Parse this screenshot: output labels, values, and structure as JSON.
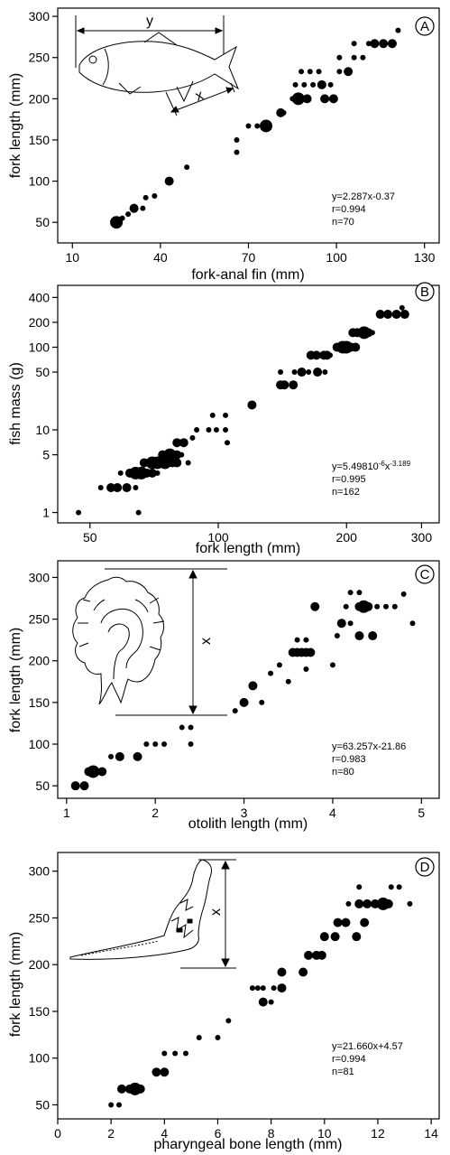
{
  "chart_data": [
    {
      "type": "scatter",
      "panel": "A",
      "xlabel": "fork-anal fin (mm)",
      "ylabel": "fork length (mm)",
      "xlim": [
        5,
        135
      ],
      "ylim": [
        25,
        310
      ],
      "xticks": [
        10,
        40,
        70,
        100,
        130
      ],
      "yticks": [
        50,
        100,
        150,
        200,
        250,
        300
      ],
      "equation_lines": [
        "y=2.287x-0.37",
        "r=0.994",
        "n=70"
      ],
      "inset_labels": [
        "y",
        "x"
      ],
      "point_sizes": {
        "1": 3,
        "2": 5,
        "3": 7
      },
      "points": [
        [
          25,
          50,
          3
        ],
        [
          27,
          55,
          1
        ],
        [
          29,
          60,
          1
        ],
        [
          31,
          67,
          2
        ],
        [
          34,
          67,
          1
        ],
        [
          35,
          80,
          1
        ],
        [
          38,
          82,
          1
        ],
        [
          43,
          100,
          2
        ],
        [
          49,
          117,
          1
        ],
        [
          66,
          135,
          1
        ],
        [
          66,
          150,
          1
        ],
        [
          70,
          167,
          1
        ],
        [
          73,
          167,
          1
        ],
        [
          76,
          167,
          3
        ],
        [
          81,
          183,
          2
        ],
        [
          82,
          183,
          1
        ],
        [
          85,
          200,
          1
        ],
        [
          87,
          200,
          3
        ],
        [
          90,
          200,
          2
        ],
        [
          86,
          217,
          1
        ],
        [
          89,
          217,
          1
        ],
        [
          92,
          217,
          1
        ],
        [
          95,
          217,
          2
        ],
        [
          98,
          217,
          1
        ],
        [
          88,
          233,
          1
        ],
        [
          91,
          233,
          1
        ],
        [
          94,
          233,
          1
        ],
        [
          96,
          200,
          2
        ],
        [
          99,
          200,
          2
        ],
        [
          101,
          233,
          1
        ],
        [
          104,
          233,
          2
        ],
        [
          101,
          250,
          1
        ],
        [
          106,
          250,
          1
        ],
        [
          109,
          250,
          1
        ],
        [
          106,
          267,
          1
        ],
        [
          111,
          267,
          1
        ],
        [
          113,
          267,
          2
        ],
        [
          116,
          267,
          2
        ],
        [
          119,
          267,
          2
        ],
        [
          121,
          283,
          1
        ]
      ]
    },
    {
      "type": "scatter",
      "panel": "B",
      "xlabel": "fork length (mm)",
      "ylabel": "fish mass (g)",
      "log_x": true,
      "log_y": true,
      "xlim": [
        42,
        330
      ],
      "ylim": [
        0.75,
        560
      ],
      "xticks": [
        50,
        100,
        200,
        300
      ],
      "yticks": [
        1,
        5,
        10,
        50,
        100,
        200,
        400
      ],
      "equation_base": "y=5.498",
      "equation_exp1": "10",
      "equation_sup1": "-6",
      "equation_x": "x",
      "equation_sup2": "-3.189",
      "equation_lines": [
        "r=0.995",
        "n=162"
      ],
      "point_sizes": {
        "1": 3,
        "2": 5,
        "3": 7
      },
      "points": [
        [
          47,
          1,
          1
        ],
        [
          65,
          1,
          1
        ],
        [
          53,
          2,
          1
        ],
        [
          56,
          2,
          2
        ],
        [
          58,
          2,
          2
        ],
        [
          61,
          2,
          2
        ],
        [
          64,
          2,
          1
        ],
        [
          59,
          3,
          1
        ],
        [
          62,
          3,
          2
        ],
        [
          64,
          3,
          3
        ],
        [
          66,
          3,
          3
        ],
        [
          68,
          3,
          2
        ],
        [
          70,
          3,
          2
        ],
        [
          72,
          3,
          1
        ],
        [
          67,
          4,
          2
        ],
        [
          70,
          4,
          3
        ],
        [
          72,
          4,
          3
        ],
        [
          75,
          4,
          3
        ],
        [
          78,
          4,
          2
        ],
        [
          80,
          4,
          2
        ],
        [
          85,
          4,
          1
        ],
        [
          74,
          5,
          2
        ],
        [
          77,
          5,
          3
        ],
        [
          80,
          5,
          2
        ],
        [
          82,
          5,
          1
        ],
        [
          80,
          7,
          2
        ],
        [
          83,
          7,
          2
        ],
        [
          87,
          8,
          1
        ],
        [
          89,
          10,
          1
        ],
        [
          95,
          10,
          1
        ],
        [
          99,
          10,
          1
        ],
        [
          104,
          10,
          1
        ],
        [
          97,
          15,
          1
        ],
        [
          104,
          15,
          1
        ],
        [
          105,
          7,
          1
        ],
        [
          120,
          20,
          2
        ],
        [
          140,
          35,
          2
        ],
        [
          143,
          35,
          2
        ],
        [
          150,
          35,
          2
        ],
        [
          140,
          50,
          1
        ],
        [
          151,
          50,
          1
        ],
        [
          157,
          50,
          2
        ],
        [
          163,
          50,
          1
        ],
        [
          171,
          50,
          2
        ],
        [
          178,
          50,
          1
        ],
        [
          165,
          80,
          2
        ],
        [
          170,
          80,
          2
        ],
        [
          177,
          80,
          2
        ],
        [
          180,
          80,
          2
        ],
        [
          183,
          80,
          1
        ],
        [
          190,
          100,
          2
        ],
        [
          196,
          100,
          3
        ],
        [
          200,
          100,
          3
        ],
        [
          205,
          100,
          2
        ],
        [
          210,
          100,
          2
        ],
        [
          207,
          150,
          2
        ],
        [
          212,
          150,
          2
        ],
        [
          220,
          150,
          3
        ],
        [
          225,
          150,
          2
        ],
        [
          230,
          150,
          1
        ],
        [
          240,
          250,
          2
        ],
        [
          250,
          250,
          2
        ],
        [
          262,
          250,
          2
        ],
        [
          274,
          250,
          2
        ],
        [
          270,
          300,
          1
        ]
      ]
    },
    {
      "type": "scatter",
      "panel": "C",
      "xlabel": "otolith length (mm)",
      "ylabel": "fork length (mm)",
      "xlim": [
        0.9,
        5.2
      ],
      "ylim": [
        35,
        320
      ],
      "xticks": [
        1,
        2,
        3,
        4,
        5
      ],
      "yticks": [
        50,
        100,
        150,
        200,
        250,
        300
      ],
      "equation_lines": [
        "y=63.257x-21.86",
        "r=0.983",
        "n=80"
      ],
      "inset_labels": [
        "x"
      ],
      "point_sizes": {
        "1": 3,
        "2": 5,
        "3": 7
      },
      "points": [
        [
          1.1,
          50,
          2
        ],
        [
          1.2,
          50,
          2
        ],
        [
          1.25,
          67,
          2
        ],
        [
          1.3,
          67,
          3
        ],
        [
          1.4,
          67,
          2
        ],
        [
          1.5,
          85,
          1
        ],
        [
          1.6,
          85,
          2
        ],
        [
          1.8,
          85,
          2
        ],
        [
          1.9,
          100,
          1
        ],
        [
          2.0,
          100,
          1
        ],
        [
          2.1,
          100,
          1
        ],
        [
          2.3,
          120,
          1
        ],
        [
          2.4,
          120,
          1
        ],
        [
          2.4,
          100,
          1
        ],
        [
          2.9,
          140,
          1
        ],
        [
          3.0,
          150,
          2
        ],
        [
          3.1,
          170,
          2
        ],
        [
          3.2,
          150,
          1
        ],
        [
          3.3,
          185,
          1
        ],
        [
          3.4,
          195,
          1
        ],
        [
          3.5,
          175,
          1
        ],
        [
          3.55,
          210,
          2
        ],
        [
          3.6,
          210,
          2
        ],
        [
          3.65,
          210,
          2
        ],
        [
          3.7,
          210,
          2
        ],
        [
          3.75,
          210,
          2
        ],
        [
          3.6,
          225,
          1
        ],
        [
          3.7,
          225,
          1
        ],
        [
          3.7,
          190,
          1
        ],
        [
          3.8,
          265,
          2
        ],
        [
          4.0,
          195,
          1
        ],
        [
          4.05,
          230,
          1
        ],
        [
          4.1,
          245,
          2
        ],
        [
          4.15,
          265,
          1
        ],
        [
          4.2,
          245,
          1
        ],
        [
          4.3,
          265,
          2
        ],
        [
          4.3,
          230,
          2
        ],
        [
          4.35,
          265,
          3
        ],
        [
          4.4,
          265,
          2
        ],
        [
          4.45,
          230,
          2
        ],
        [
          4.5,
          265,
          1
        ],
        [
          4.6,
          265,
          1
        ],
        [
          4.7,
          265,
          1
        ],
        [
          4.8,
          280,
          1
        ],
        [
          4.9,
          245,
          1
        ],
        [
          4.2,
          282,
          1
        ],
        [
          4.3,
          282,
          1
        ]
      ]
    },
    {
      "type": "scatter",
      "panel": "D",
      "xlabel": "pharyngeal bone length (mm)",
      "ylabel": "fork length (mm)",
      "xlim": [
        0,
        14.3
      ],
      "ylim": [
        35,
        320
      ],
      "xticks": [
        0,
        2,
        4,
        6,
        8,
        10,
        12,
        14
      ],
      "yticks": [
        50,
        100,
        150,
        200,
        250,
        300
      ],
      "equation_lines": [
        "y=21.660x+4.57",
        "r=0.994",
        "n=81"
      ],
      "inset_labels": [
        "x"
      ],
      "point_sizes": {
        "1": 3,
        "2": 5,
        "3": 7
      },
      "points": [
        [
          2.0,
          50,
          1
        ],
        [
          2.3,
          50,
          1
        ],
        [
          2.4,
          67,
          2
        ],
        [
          2.7,
          67,
          2
        ],
        [
          2.9,
          67,
          3
        ],
        [
          3.1,
          67,
          2
        ],
        [
          3.7,
          85,
          2
        ],
        [
          4.0,
          85,
          2
        ],
        [
          4.0,
          105,
          1
        ],
        [
          4.4,
          105,
          1
        ],
        [
          4.8,
          105,
          1
        ],
        [
          5.3,
          122,
          1
        ],
        [
          6.0,
          122,
          1
        ],
        [
          6.4,
          140,
          1
        ],
        [
          7.3,
          175,
          1
        ],
        [
          7.5,
          175,
          1
        ],
        [
          7.7,
          160,
          2
        ],
        [
          7.7,
          175,
          1
        ],
        [
          8.0,
          160,
          1
        ],
        [
          8.1,
          175,
          1
        ],
        [
          8.4,
          175,
          2
        ],
        [
          8.4,
          192,
          2
        ],
        [
          9.2,
          192,
          2
        ],
        [
          9.4,
          210,
          2
        ],
        [
          9.7,
          210,
          2
        ],
        [
          9.9,
          210,
          2
        ],
        [
          10.0,
          230,
          2
        ],
        [
          10.4,
          230,
          2
        ],
        [
          10.5,
          245,
          2
        ],
        [
          10.8,
          245,
          2
        ],
        [
          10.9,
          265,
          1
        ],
        [
          11.2,
          230,
          2
        ],
        [
          11.3,
          265,
          2
        ],
        [
          11.5,
          245,
          2
        ],
        [
          11.6,
          265,
          2
        ],
        [
          11.9,
          265,
          2
        ],
        [
          12.2,
          265,
          3
        ],
        [
          12.4,
          265,
          2
        ],
        [
          11.3,
          283,
          1
        ],
        [
          12.5,
          283,
          1
        ],
        [
          12.8,
          283,
          1
        ],
        [
          13.2,
          265,
          1
        ]
      ]
    }
  ]
}
